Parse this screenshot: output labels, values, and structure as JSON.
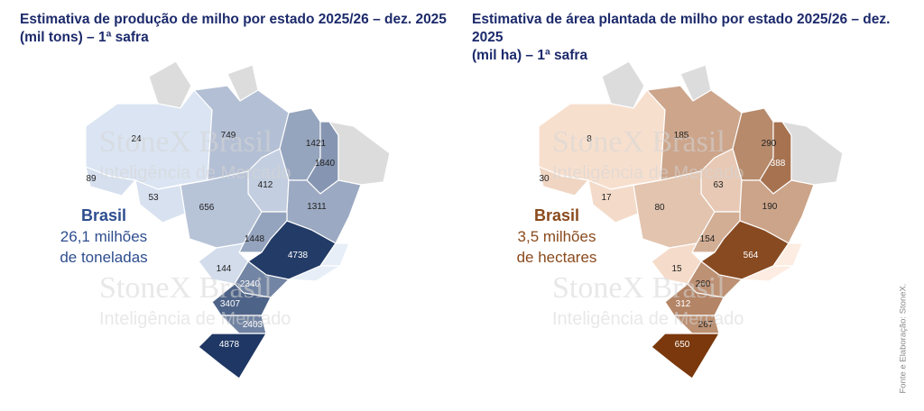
{
  "watermark": {
    "brand": "StoneX Brasil",
    "tagline": "Inteligência de Mercado"
  },
  "source": "Fonte e Elaboração: StoneX.",
  "maps": [
    {
      "title_line1": "Estimativa de produção de milho por estado 2025/26 – dez. 2025",
      "title_line2": "(mil tons) – 1ª safra",
      "total_label": "Brasil",
      "total_value": "26,1 milhões",
      "total_unit": "de toneladas",
      "color_low": "#dde6f4",
      "color_high": "#1f3764",
      "label_dark": "#222222",
      "values": {
        "AM": 24,
        "AC": 89,
        "RO": 53,
        "PA": 749,
        "MA": 1421,
        "PI": 1840,
        "TO": 412,
        "MT": 656,
        "BA": 1311,
        "GO": 1448,
        "MG": 4738,
        "MS": 144,
        "SP": 2340,
        "PR": 3407,
        "SC": 2403,
        "RS": 4878
      }
    },
    {
      "title_line1": "Estimativa de área plantada de milho por estado 2025/26 – dez. 2025",
      "title_line2": "(mil ha) – 1ª safra",
      "total_label": "Brasil",
      "total_value": "3,5 milhões",
      "total_unit": "de hectares",
      "color_low": "#fbe4d4",
      "color_high": "#7a380c",
      "label_dark": "#222222",
      "values": {
        "AM": 8,
        "AC": 30,
        "RO": 17,
        "PA": 185,
        "MA": 290,
        "PI": 388,
        "TO": 63,
        "MT": 80,
        "BA": 190,
        "GO": 154,
        "MG": 564,
        "MS": 15,
        "SP": 260,
        "PR": 312,
        "SC": 267,
        "RS": 650
      }
    }
  ]
}
